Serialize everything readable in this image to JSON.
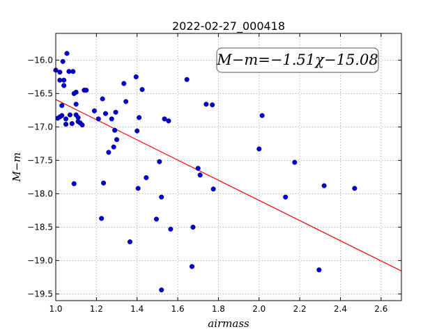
{
  "chart_data": {
    "type": "scatter",
    "title": "2022-02-27_000418",
    "xlabel": "airmass",
    "ylabel": "M−m",
    "xlim": [
      1.0,
      2.7
    ],
    "ylim": [
      -19.6,
      -15.6
    ],
    "x_ticks": [
      1.0,
      1.2,
      1.4,
      1.6,
      1.8,
      2.0,
      2.2,
      2.4,
      2.6
    ],
    "x_tick_labels": [
      "1.0",
      "1.2",
      "1.4",
      "1.6",
      "1.8",
      "2.0",
      "2.2",
      "2.4",
      "2.6"
    ],
    "y_ticks": [
      -16.0,
      -16.5,
      -17.0,
      -17.5,
      -18.0,
      -18.5,
      -19.0,
      -19.5
    ],
    "y_tick_labels": [
      "−16.0",
      "−16.5",
      "−17.0",
      "−17.5",
      "−18.0",
      "−18.5",
      "−19.0",
      "−19.5"
    ],
    "grid": true,
    "annotation": "M−m=−1.51χ−15.08",
    "fit": {
      "slope": -1.51,
      "intercept": -15.08
    },
    "point_color": "#0000cc",
    "line_color": "#ee0000",
    "points": [
      {
        "x": 1.0,
        "y": -16.15
      },
      {
        "x": 1.01,
        "y": -16.87
      },
      {
        "x": 1.02,
        "y": -16.18
      },
      {
        "x": 1.02,
        "y": -16.3
      },
      {
        "x": 1.02,
        "y": -16.85
      },
      {
        "x": 1.03,
        "y": -16.68
      },
      {
        "x": 1.03,
        "y": -16.83
      },
      {
        "x": 1.035,
        "y": -16.02
      },
      {
        "x": 1.04,
        "y": -16.3
      },
      {
        "x": 1.04,
        "y": -16.38
      },
      {
        "x": 1.05,
        "y": -16.88
      },
      {
        "x": 1.05,
        "y": -16.96
      },
      {
        "x": 1.055,
        "y": -15.9
      },
      {
        "x": 1.065,
        "y": -16.17
      },
      {
        "x": 1.07,
        "y": -16.82
      },
      {
        "x": 1.08,
        "y": -16.95
      },
      {
        "x": 1.085,
        "y": -16.17
      },
      {
        "x": 1.09,
        "y": -16.5
      },
      {
        "x": 1.09,
        "y": -17.85
      },
      {
        "x": 1.1,
        "y": -16.82
      },
      {
        "x": 1.1,
        "y": -16.66
      },
      {
        "x": 1.1,
        "y": -16.48
      },
      {
        "x": 1.11,
        "y": -16.86
      },
      {
        "x": 1.11,
        "y": -16.92
      },
      {
        "x": 1.12,
        "y": -16.94
      },
      {
        "x": 1.13,
        "y": -16.97
      },
      {
        "x": 1.14,
        "y": -16.45
      },
      {
        "x": 1.15,
        "y": -16.45
      },
      {
        "x": 1.19,
        "y": -16.76
      },
      {
        "x": 1.21,
        "y": -16.88
      },
      {
        "x": 1.225,
        "y": -18.37
      },
      {
        "x": 1.23,
        "y": -16.58
      },
      {
        "x": 1.235,
        "y": -17.84
      },
      {
        "x": 1.245,
        "y": -16.8
      },
      {
        "x": 1.26,
        "y": -17.38
      },
      {
        "x": 1.275,
        "y": -16.88
      },
      {
        "x": 1.285,
        "y": -17.3
      },
      {
        "x": 1.29,
        "y": -17.05
      },
      {
        "x": 1.295,
        "y": -16.78
      },
      {
        "x": 1.3,
        "y": -17.19
      },
      {
        "x": 1.335,
        "y": -16.35
      },
      {
        "x": 1.345,
        "y": -16.62
      },
      {
        "x": 1.365,
        "y": -18.72
      },
      {
        "x": 1.395,
        "y": -16.25
      },
      {
        "x": 1.4,
        "y": -17.06
      },
      {
        "x": 1.405,
        "y": -17.92
      },
      {
        "x": 1.41,
        "y": -16.86
      },
      {
        "x": 1.425,
        "y": -16.44
      },
      {
        "x": 1.445,
        "y": -17.76
      },
      {
        "x": 1.495,
        "y": -18.38
      },
      {
        "x": 1.51,
        "y": -17.52
      },
      {
        "x": 1.52,
        "y": -18.05
      },
      {
        "x": 1.52,
        "y": -19.44
      },
      {
        "x": 1.535,
        "y": -16.88
      },
      {
        "x": 1.555,
        "y": -16.91
      },
      {
        "x": 1.565,
        "y": -18.53
      },
      {
        "x": 1.645,
        "y": -16.29
      },
      {
        "x": 1.67,
        "y": -19.09
      },
      {
        "x": 1.675,
        "y": -18.5
      },
      {
        "x": 1.7,
        "y": -17.62
      },
      {
        "x": 1.71,
        "y": -17.72
      },
      {
        "x": 1.74,
        "y": -16.66
      },
      {
        "x": 1.77,
        "y": -16.67
      },
      {
        "x": 1.775,
        "y": -17.93
      },
      {
        "x": 2.0,
        "y": -17.33
      },
      {
        "x": 2.015,
        "y": -16.83
      },
      {
        "x": 2.13,
        "y": -18.05
      },
      {
        "x": 2.175,
        "y": -17.53
      },
      {
        "x": 2.295,
        "y": -19.14
      },
      {
        "x": 2.32,
        "y": -17.88
      },
      {
        "x": 2.47,
        "y": -17.92
      }
    ]
  }
}
